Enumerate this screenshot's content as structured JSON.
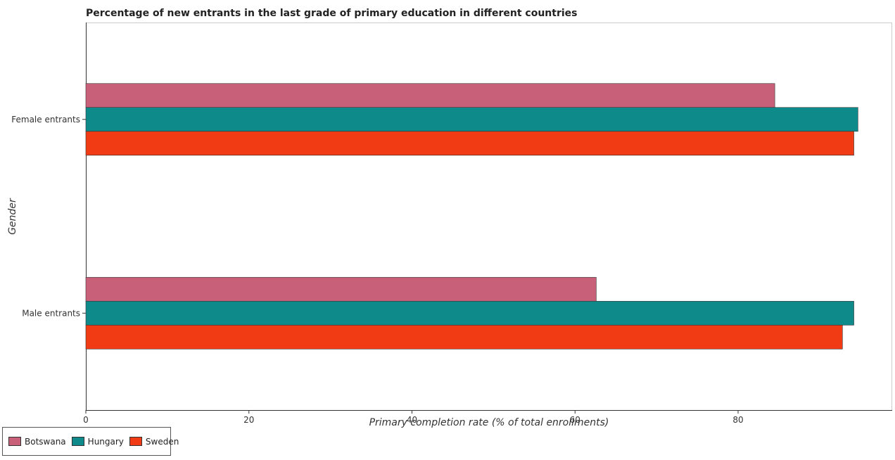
{
  "chart_data": {
    "type": "bar",
    "orientation": "horizontal",
    "title": "Percentage of new entrants in the last grade of primary education in different countries",
    "xlabel": "Primary completion rate (% of total enrollments)",
    "ylabel": "Gender",
    "categories": [
      "Female entrants",
      "Male entrants"
    ],
    "xlim": [
      0,
      98.9
    ],
    "xticks": [
      0,
      20,
      40,
      60,
      80
    ],
    "grid": false,
    "legend_position": "bottom-left",
    "series": [
      {
        "name": "Botswana",
        "color": "#c8607a",
        "values": [
          84.5,
          62.6
        ]
      },
      {
        "name": "Hungary",
        "color": "#0e8a8a",
        "values": [
          94.7,
          94.2
        ]
      },
      {
        "name": "Sweden",
        "color": "#f03b14",
        "values": [
          94.2,
          92.8
        ]
      }
    ]
  }
}
